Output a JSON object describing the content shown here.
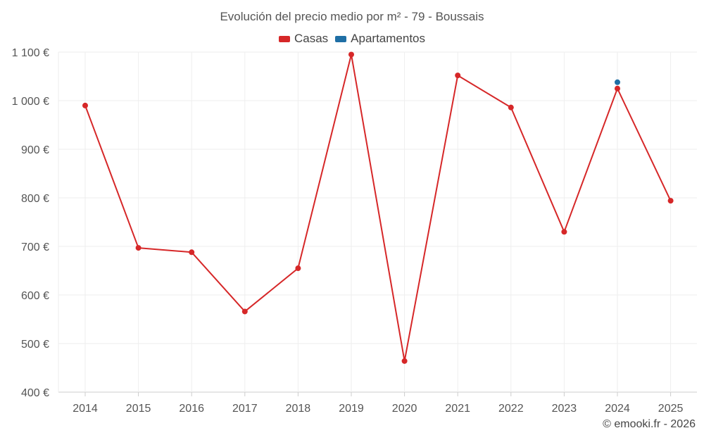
{
  "chart_data": {
    "type": "line",
    "title": "Evolución del precio medio por m² - 79 - Boussais",
    "xlabel": "",
    "ylabel": "",
    "categories": [
      "2014",
      "2015",
      "2016",
      "2017",
      "2018",
      "2019",
      "2020",
      "2021",
      "2022",
      "2023",
      "2024",
      "2025"
    ],
    "y_ticks": [
      "400 €",
      "500 €",
      "600 €",
      "700 €",
      "800 €",
      "900 €",
      "1 000 €",
      "1 100 €"
    ],
    "ylim": [
      400,
      1100
    ],
    "legend_position": "top-center",
    "grid": true,
    "series": [
      {
        "name": "Casas",
        "color": "#d62728",
        "values": [
          990,
          697,
          688,
          566,
          655,
          1095,
          464,
          1052,
          986,
          730,
          1025,
          794
        ]
      },
      {
        "name": "Apartamentos",
        "color": "#1f6fa5",
        "values": [
          null,
          null,
          null,
          null,
          null,
          null,
          null,
          null,
          null,
          null,
          1038,
          null
        ]
      }
    ]
  },
  "credit": "© emooki.fr - 2026"
}
